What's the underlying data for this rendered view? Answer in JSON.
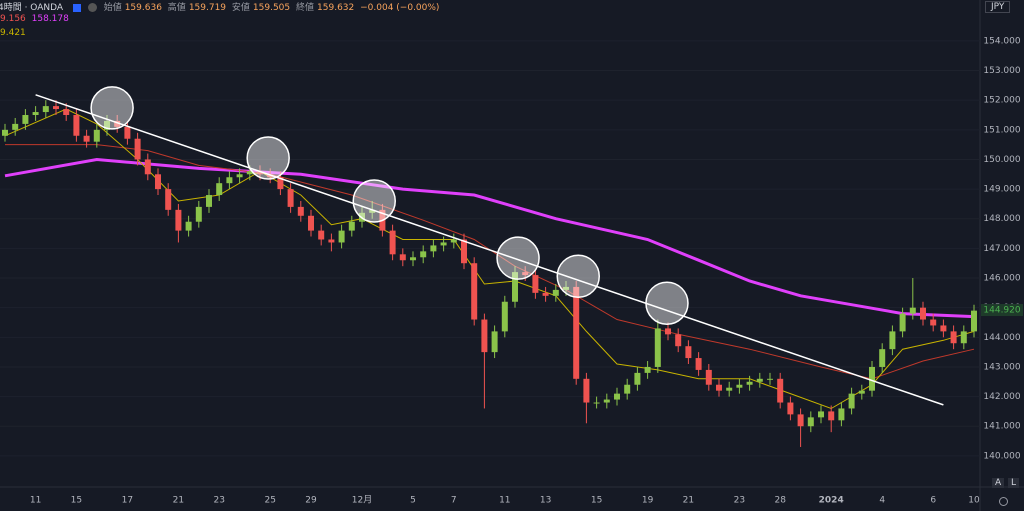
{
  "header": {
    "interval": "4時間 · OANDA",
    "ohlc": [
      {
        "label": "始値",
        "value": "159.636"
      },
      {
        "label": "高値",
        "value": "159.719"
      },
      {
        "label": "安値",
        "value": "159.505"
      },
      {
        "label": "終値",
        "value": "159.632"
      }
    ],
    "change": "−0.004 (−0.00%)",
    "ma_row1": [
      "9.156",
      "158.178"
    ],
    "ma_row2": "9.421",
    "currency": "JPY",
    "scale_buttons": [
      "A",
      "L"
    ]
  },
  "chart_data": {
    "type": "candlestick",
    "up_color": "#8bc34a",
    "down_color": "#ef5350",
    "grid": true,
    "categories": [
      null,
      null,
      null,
      "11",
      null,
      null,
      null,
      "15",
      null,
      null,
      null,
      null,
      "17",
      null,
      null,
      null,
      null,
      "21",
      null,
      null,
      null,
      "23",
      null,
      null,
      null,
      null,
      "25",
      null,
      null,
      null,
      "29",
      null,
      null,
      null,
      null,
      "12月",
      null,
      null,
      null,
      null,
      "5",
      null,
      null,
      null,
      "7",
      null,
      null,
      null,
      null,
      "11",
      null,
      null,
      null,
      "13",
      null,
      null,
      null,
      null,
      "15",
      null,
      null,
      null,
      null,
      "19",
      null,
      null,
      null,
      "21",
      null,
      null,
      null,
      null,
      "23",
      null,
      null,
      null,
      "28",
      null,
      null,
      null,
      null,
      "2024",
      null,
      null,
      null,
      null,
      "4",
      null,
      null,
      null,
      null,
      "6",
      null,
      null,
      null,
      "10"
    ],
    "open": [
      150.8,
      151.0,
      151.2,
      151.5,
      151.6,
      151.8,
      151.7,
      151.5,
      150.8,
      150.6,
      151.0,
      151.3,
      151.1,
      150.7,
      150.0,
      149.5,
      149.0,
      148.3,
      147.6,
      147.9,
      148.4,
      148.8,
      149.2,
      149.4,
      149.5,
      149.6,
      149.5,
      149.4,
      149.0,
      148.4,
      148.1,
      147.6,
      147.3,
      147.2,
      147.6,
      147.9,
      148.2,
      148.3,
      147.6,
      146.8,
      146.6,
      146.7,
      146.9,
      147.1,
      147.2,
      147.3,
      146.5,
      144.6,
      143.5,
      144.2,
      145.2,
      146.2,
      146.1,
      145.5,
      145.4,
      145.6,
      145.7,
      142.6,
      141.8,
      141.8,
      141.9,
      142.1,
      142.4,
      142.8,
      143.0,
      144.3,
      144.1,
      143.7,
      143.3,
      142.9,
      142.4,
      142.2,
      142.3,
      142.4,
      142.5,
      142.6,
      142.6,
      141.8,
      141.4,
      141.0,
      141.3,
      141.5,
      141.2,
      141.6,
      142.1,
      142.2,
      143.0,
      143.6,
      144.2,
      144.8,
      145.0,
      144.6,
      144.4,
      144.2,
      143.8,
      144.2
    ],
    "high": [
      151.2,
      151.4,
      151.7,
      151.8,
      152.0,
      152.0,
      151.9,
      151.7,
      151.0,
      151.2,
      151.5,
      151.5,
      151.3,
      150.9,
      150.2,
      149.7,
      149.2,
      148.5,
      148.1,
      148.6,
      149.0,
      149.4,
      149.6,
      149.7,
      149.8,
      149.8,
      149.7,
      149.6,
      149.2,
      148.6,
      148.3,
      147.8,
      147.5,
      147.8,
      148.1,
      148.4,
      148.6,
      148.5,
      147.8,
      147.0,
      146.9,
      147.1,
      147.3,
      147.4,
      147.5,
      147.5,
      146.7,
      144.8,
      144.4,
      145.4,
      146.4,
      146.4,
      146.3,
      145.7,
      145.8,
      145.9,
      145.9,
      142.8,
      142.0,
      142.1,
      142.3,
      142.6,
      143.0,
      143.2,
      144.6,
      144.5,
      144.3,
      143.9,
      143.5,
      143.1,
      142.6,
      142.5,
      142.6,
      142.7,
      142.8,
      142.8,
      142.8,
      142.0,
      141.6,
      141.5,
      141.7,
      141.7,
      141.8,
      142.3,
      142.4,
      143.2,
      143.8,
      144.4,
      145.0,
      146.0,
      145.2,
      144.8,
      144.6,
      144.4,
      144.4,
      145.1
    ],
    "low": [
      150.6,
      150.8,
      151.0,
      151.3,
      151.4,
      151.5,
      151.3,
      150.6,
      150.4,
      150.4,
      150.8,
      150.9,
      150.5,
      149.8,
      149.3,
      148.8,
      148.1,
      147.2,
      147.4,
      147.7,
      148.2,
      148.6,
      149.0,
      149.2,
      149.3,
      149.3,
      149.2,
      148.8,
      148.2,
      147.9,
      147.4,
      147.1,
      146.9,
      147.0,
      147.4,
      147.7,
      148.0,
      147.4,
      146.6,
      146.4,
      146.4,
      146.5,
      146.7,
      146.9,
      147.0,
      146.3,
      144.4,
      141.6,
      143.3,
      144.0,
      145.0,
      145.9,
      145.3,
      145.2,
      145.2,
      145.4,
      142.4,
      141.1,
      141.6,
      141.6,
      141.7,
      141.9,
      142.2,
      142.6,
      142.8,
      143.9,
      143.5,
      143.1,
      142.7,
      142.2,
      142.0,
      142.0,
      142.1,
      142.2,
      142.3,
      142.4,
      141.6,
      141.2,
      140.3,
      140.8,
      141.1,
      140.8,
      141.0,
      141.4,
      141.9,
      142.0,
      142.8,
      143.4,
      144.0,
      144.6,
      144.4,
      144.2,
      144.0,
      143.6,
      143.6,
      144.0
    ],
    "close": [
      151.0,
      151.2,
      151.5,
      151.6,
      151.8,
      151.7,
      151.5,
      150.8,
      150.6,
      151.0,
      151.3,
      151.1,
      150.7,
      150.0,
      149.5,
      149.0,
      148.3,
      147.6,
      147.9,
      148.4,
      148.8,
      149.2,
      149.4,
      149.5,
      149.6,
      149.5,
      149.4,
      149.0,
      148.4,
      148.1,
      147.6,
      147.3,
      147.2,
      147.6,
      147.9,
      148.2,
      148.3,
      147.6,
      146.8,
      146.6,
      146.7,
      146.9,
      147.1,
      147.2,
      147.3,
      146.5,
      144.6,
      143.5,
      144.2,
      145.2,
      146.2,
      146.1,
      145.5,
      145.4,
      145.6,
      145.7,
      142.6,
      141.8,
      141.8,
      141.9,
      142.1,
      142.4,
      142.8,
      143.0,
      144.3,
      144.1,
      143.7,
      143.3,
      142.9,
      142.4,
      142.2,
      142.3,
      142.4,
      142.5,
      142.6,
      142.6,
      141.8,
      141.4,
      141.0,
      141.3,
      141.5,
      141.2,
      141.6,
      142.1,
      142.2,
      143.0,
      143.6,
      144.2,
      144.8,
      145.0,
      144.6,
      144.4,
      144.2,
      143.8,
      144.2,
      144.9
    ],
    "series": [
      {
        "color": "#e040fb",
        "x": [
          0,
          9,
          19,
          29,
          39,
          46,
          54,
          63,
          68,
          73,
          78,
          83,
          88,
          95
        ],
        "values": [
          149.45,
          150.0,
          149.7,
          149.5,
          149.0,
          148.8,
          148.0,
          147.3,
          146.6,
          145.9,
          145.4,
          145.1,
          144.8,
          144.7
        ]
      },
      {
        "color": "#c0392b",
        "x": [
          0,
          9,
          14,
          19,
          26,
          34,
          41,
          46,
          50,
          55,
          60,
          66,
          73,
          80,
          85,
          90,
          95
        ],
        "values": [
          150.5,
          150.5,
          150.3,
          149.8,
          149.5,
          148.8,
          147.95,
          147.3,
          146.4,
          145.6,
          144.6,
          144.1,
          143.6,
          143.0,
          142.6,
          143.2,
          143.6
        ]
      },
      {
        "color": "#c8b400",
        "x": [
          0,
          6,
          9,
          13,
          17,
          21,
          25,
          29,
          32,
          35,
          39,
          44,
          47,
          50,
          54,
          57,
          60,
          64,
          68,
          73,
          77,
          81,
          85,
          88,
          92,
          95
        ],
        "values": [
          150.8,
          151.7,
          151.2,
          150.0,
          148.6,
          148.8,
          149.6,
          148.8,
          147.8,
          148.0,
          147.3,
          147.3,
          145.8,
          145.9,
          145.4,
          144.2,
          143.1,
          142.9,
          142.6,
          142.6,
          142.1,
          141.6,
          142.4,
          143.6,
          143.9,
          144.2
        ]
      }
    ],
    "trend_line": {
      "x": [
        3,
        92
      ],
      "y": [
        152.18,
        141.72
      ]
    },
    "circles": {
      "x": [
        10.5,
        25.8,
        36.2,
        50.3,
        56.2,
        64.9
      ],
      "y": [
        151.74,
        150.05,
        148.6,
        146.67,
        146.06,
        145.15
      ]
    },
    "last_price": {
      "value": 144.92,
      "label": "144.920"
    },
    "ylim": [
      138.95,
      155.38
    ],
    "yticks": [
      {
        "value": 140,
        "label": "140.000"
      },
      {
        "value": 141,
        "label": "141.000"
      },
      {
        "value": 142,
        "label": "142.000"
      },
      {
        "value": 143,
        "label": "143.000"
      },
      {
        "value": 144,
        "label": "144.000"
      },
      {
        "value": 145,
        "label": "145.000"
      },
      {
        "value": 146,
        "label": "146.000"
      },
      {
        "value": 147,
        "label": "147.000"
      },
      {
        "value": 148,
        "label": "148.000"
      },
      {
        "value": 149,
        "label": "149.000"
      },
      {
        "value": 150,
        "label": "150.000"
      },
      {
        "value": 151,
        "label": "151.000"
      },
      {
        "value": 152,
        "label": "152.000"
      },
      {
        "value": 153,
        "label": "153.000"
      },
      {
        "value": 154,
        "label": "154.000"
      }
    ]
  }
}
